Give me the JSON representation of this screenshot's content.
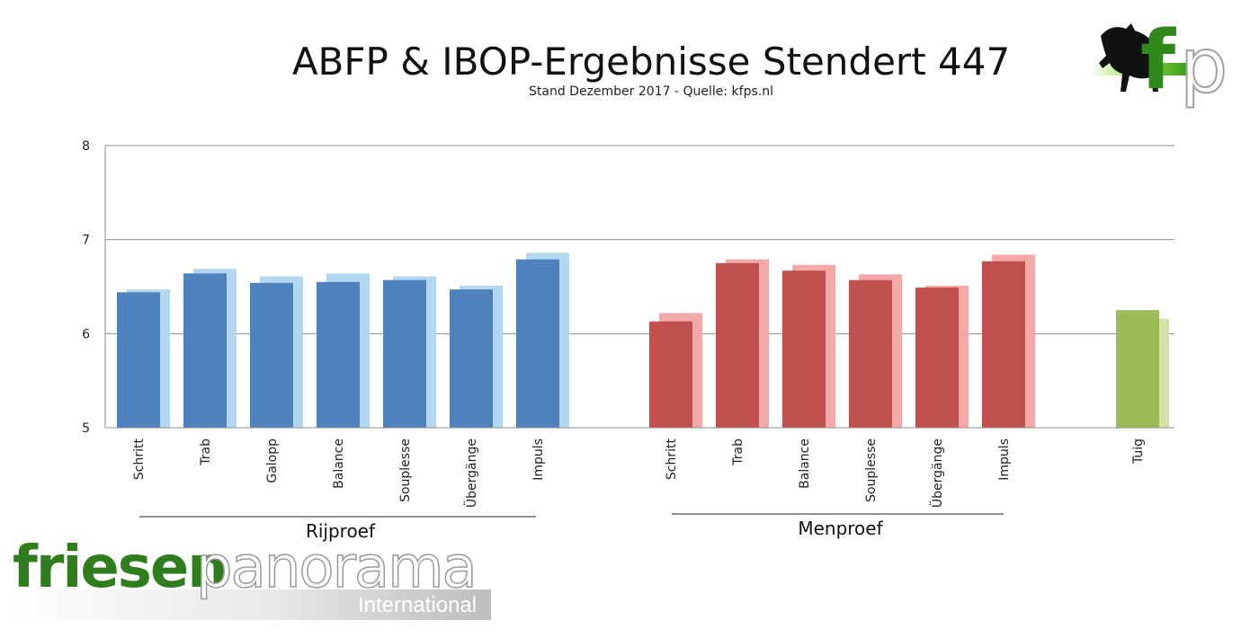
{
  "chart_data": {
    "type": "bar",
    "title": "ABFP & IBOP-Ergebnisse Stendert 447",
    "subtitle": "Stand Dezember 2017 - Quelle: kfps.nl",
    "ylim": [
      5,
      8
    ],
    "yticks": [
      "5",
      "6",
      "7",
      "8"
    ],
    "grid": true,
    "groups": [
      {
        "label": "Rijproef",
        "colors": [
          "#4f81bd",
          "#b3d7f0"
        ],
        "categories": [
          "Schritt",
          "Trab",
          "Galopp",
          "Balance",
          "Souplesse",
          "Übergänge",
          "Impuls"
        ],
        "series": [
          {
            "values": [
              6.44,
              6.64,
              6.54,
              6.55,
              6.57,
              6.47,
              6.79
            ]
          },
          {
            "values": [
              6.47,
              6.69,
              6.61,
              6.64,
              6.61,
              6.51,
              6.86
            ]
          }
        ]
      },
      {
        "label": "Menproef",
        "colors": [
          "#c0504d",
          "#f3a9a7"
        ],
        "categories": [
          "Schritt",
          "Trab",
          "Balance",
          "Souplesse",
          "Übergänge",
          "Impuls"
        ],
        "series": [
          {
            "values": [
              6.13,
              6.75,
              6.67,
              6.57,
              6.49,
              6.77
            ]
          },
          {
            "values": [
              6.22,
              6.79,
              6.73,
              6.63,
              6.51,
              6.84
            ]
          }
        ]
      },
      {
        "label": "",
        "colors": [
          "#9bbb59",
          "#d3e3a5"
        ],
        "categories": [
          "Tuig"
        ],
        "series": [
          {
            "values": [
              6.25
            ]
          },
          {
            "values": [
              6.16
            ]
          }
        ]
      }
    ]
  },
  "logo": {
    "letters": "fp",
    "icon": "horse-icon"
  },
  "brand": {
    "friesen": "friesen",
    "panorama": "panorama",
    "international": "International"
  }
}
